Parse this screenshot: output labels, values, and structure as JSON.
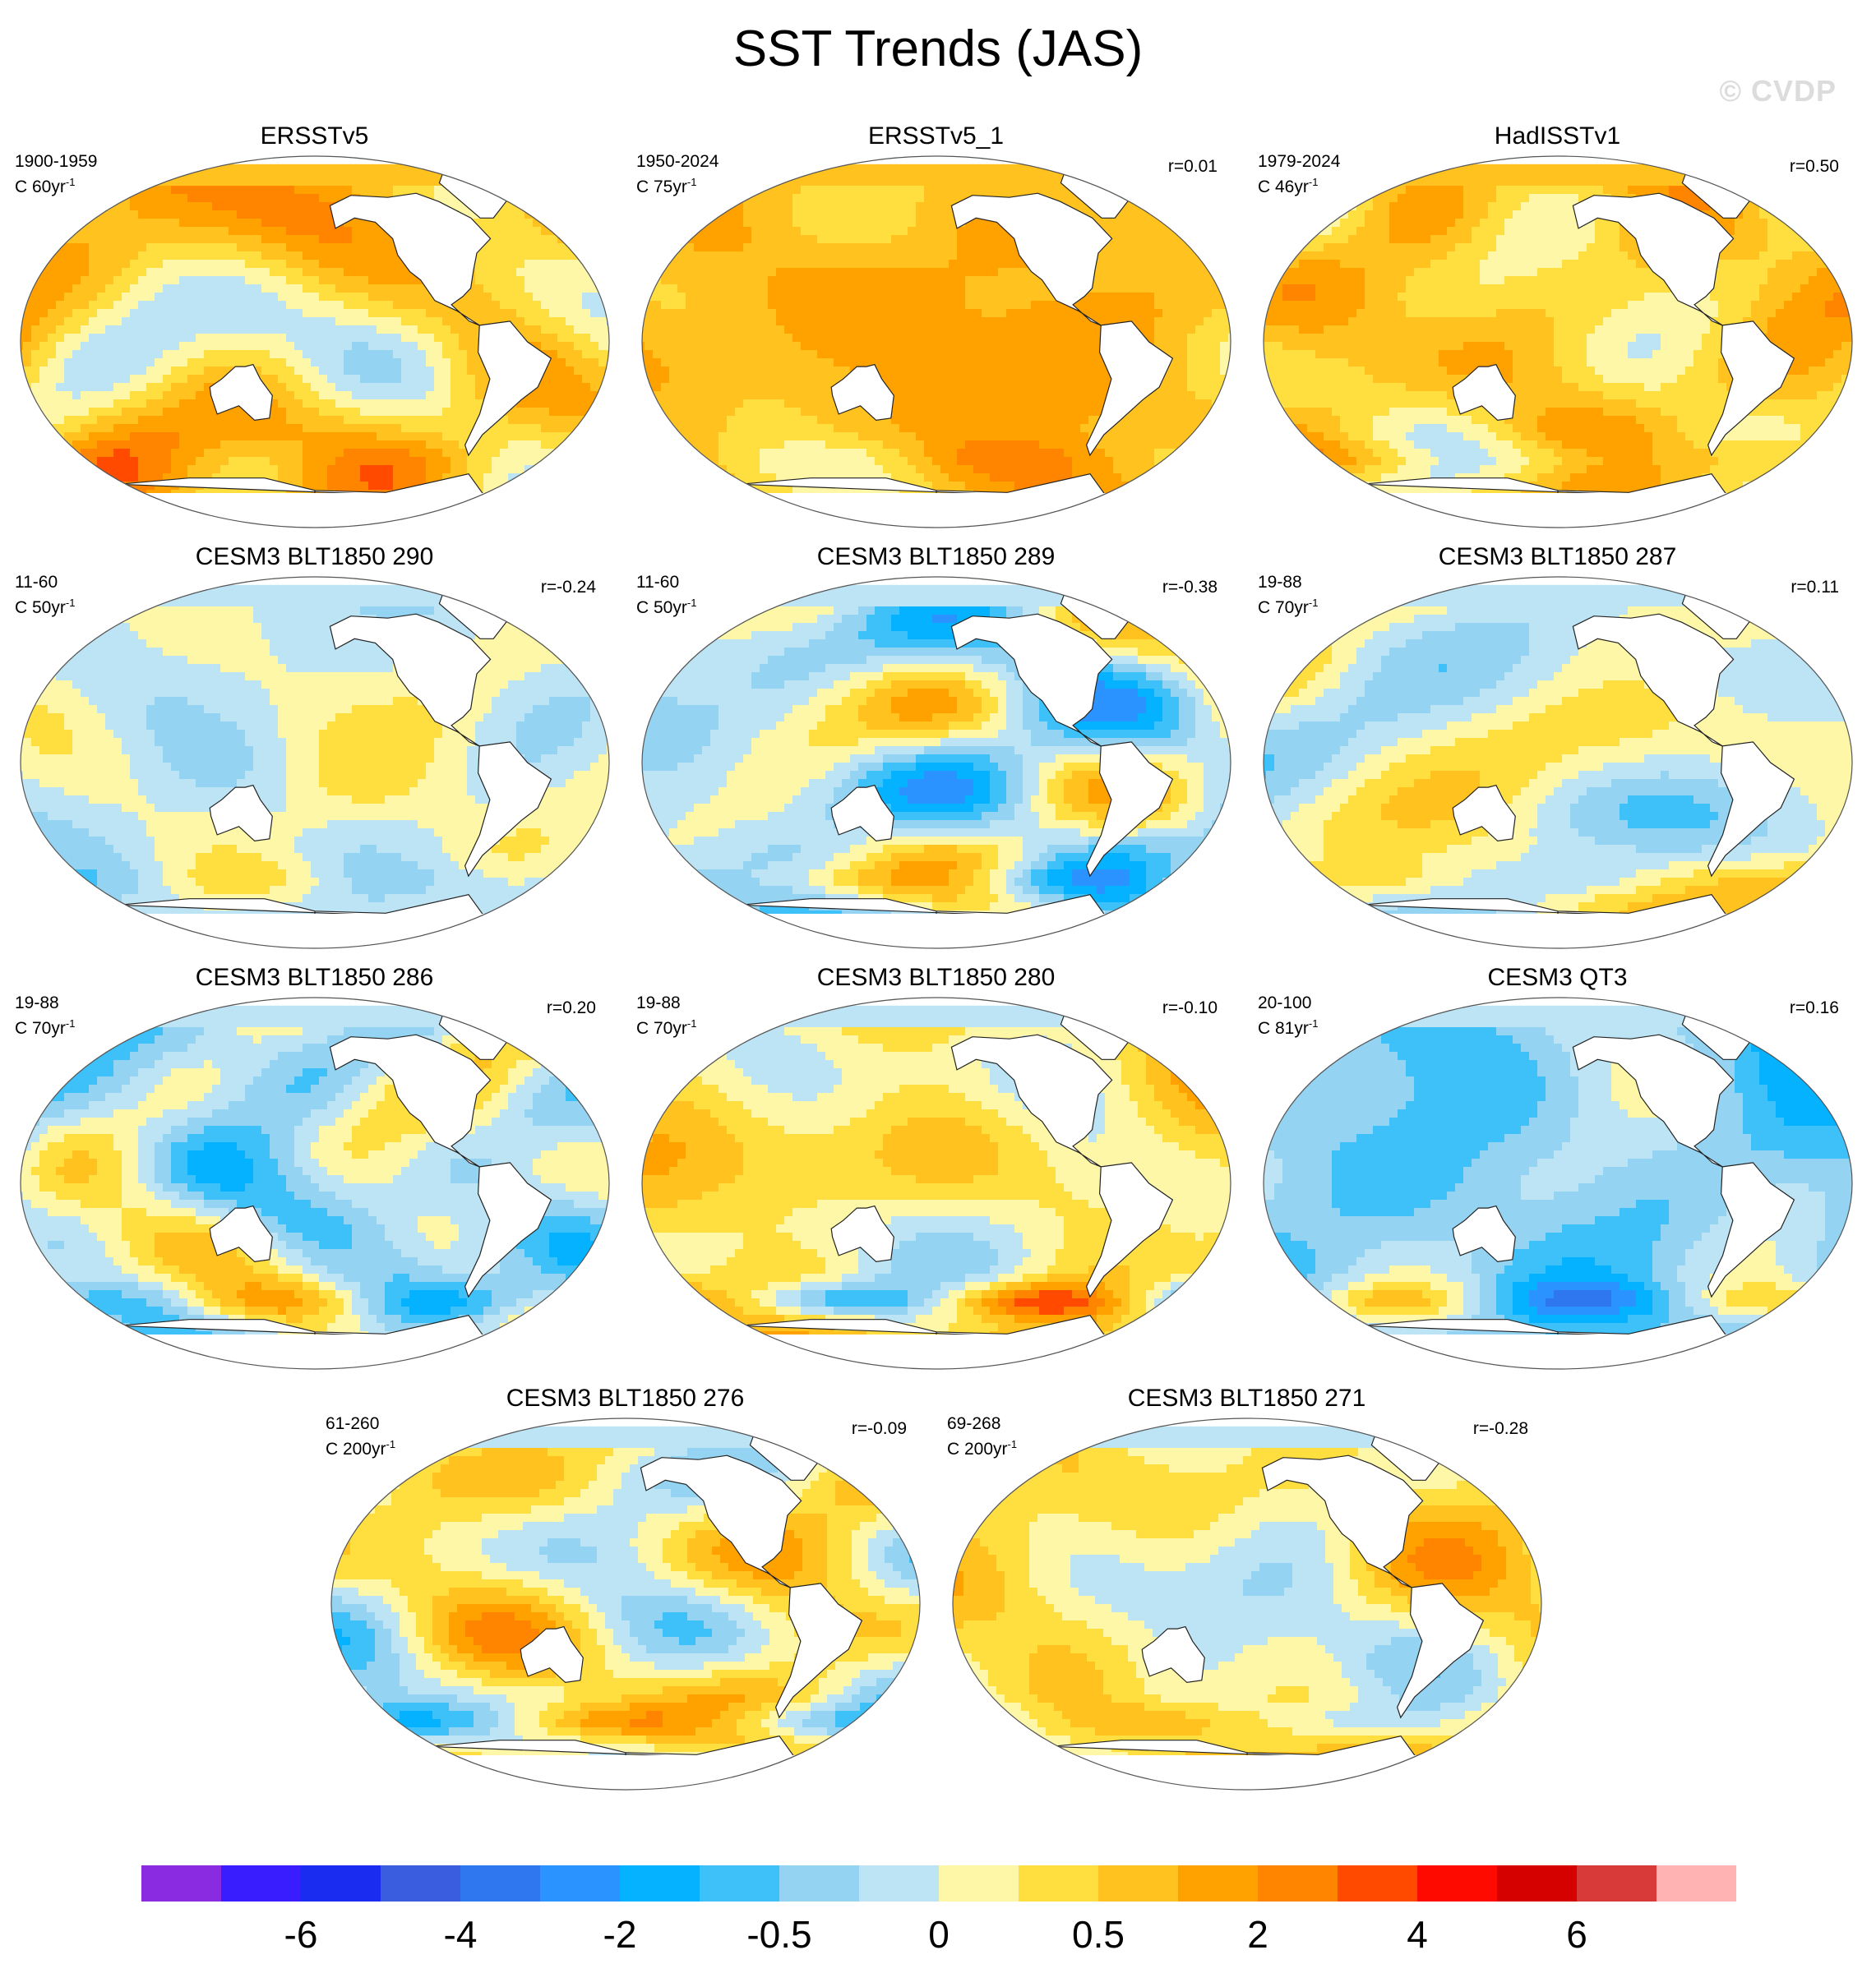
{
  "title": "SST Trends (JAS)",
  "watermark": "© CVDP",
  "panels": [
    {
      "title": "ERSSTv5",
      "period": "1900-1959",
      "contour": "C 60yr",
      "corr": "",
      "seed": 1,
      "bias": 0.55,
      "south": 0.2
    },
    {
      "title": "ERSSTv5_1",
      "period": "1950-2024",
      "contour": "C 75yr",
      "corr": "r=0.01",
      "seed": 2,
      "bias": 0.85,
      "south": 0.4
    },
    {
      "title": "HadISSTv1",
      "period": "1979-2024",
      "contour": "C 46yr",
      "corr": "r=0.50",
      "seed": 3,
      "bias": 0.6,
      "south": -0.6
    },
    {
      "title": "CESM3 BLT1850 290",
      "period": "11-60",
      "contour": "C 50yr",
      "corr": "r=-0.24",
      "seed": 4,
      "bias": -0.05,
      "south": 0.3
    },
    {
      "title": "CESM3 BLT1850 289",
      "period": "11-60",
      "contour": "C 50yr",
      "corr": "r=-0.38",
      "seed": 5,
      "bias": -0.15,
      "south": 0.6
    },
    {
      "title": "CESM3 BLT1850 287",
      "period": "19-88",
      "contour": "C 70yr",
      "corr": "r=0.11",
      "seed": 6,
      "bias": 0.05,
      "south": 0.5
    },
    {
      "title": "CESM3 BLT1850 286",
      "period": "19-88",
      "contour": "C 70yr",
      "corr": "r=0.20",
      "seed": 7,
      "bias": -0.15,
      "south": -0.6
    },
    {
      "title": "CESM3 BLT1850 280",
      "period": "19-88",
      "contour": "C 70yr",
      "corr": "r=-0.10",
      "seed": 8,
      "bias": 0.35,
      "south": 1.4
    },
    {
      "title": "CESM3 QT3",
      "period": "20-100",
      "contour": "C 81yr",
      "corr": "r=0.16",
      "seed": 9,
      "bias": -0.5,
      "south": -0.8
    },
    {
      "title": "CESM3 BLT1850 276",
      "period": "61-260",
      "contour": "C 200yr",
      "corr": "r=-0.09",
      "seed": 10,
      "bias": 0.25,
      "south": 1.0
    },
    {
      "title": "CESM3 BLT1850 271",
      "period": "69-268",
      "contour": "C 200yr",
      "corr": "r=-0.28",
      "seed": 11,
      "bias": 0.3,
      "south": 0.6
    }
  ],
  "colorbar": {
    "colors": [
      "#8a2be2",
      "#3a1dff",
      "#1a2cf0",
      "#3a5de0",
      "#2f77ee",
      "#2b93ff",
      "#05b2ff",
      "#3ec0f8",
      "#94d3f2",
      "#bde4f5",
      "#fff7a8",
      "#ffdf40",
      "#ffc21f",
      "#ffa200",
      "#ff8400",
      "#ff4a00",
      "#ff0a00",
      "#d50000",
      "#d83a3a",
      "#ffb3b3"
    ],
    "labels": [
      "-6",
      "-4",
      "-2",
      "-0.5",
      "0",
      "0.5",
      "2",
      "4",
      "6"
    ]
  }
}
